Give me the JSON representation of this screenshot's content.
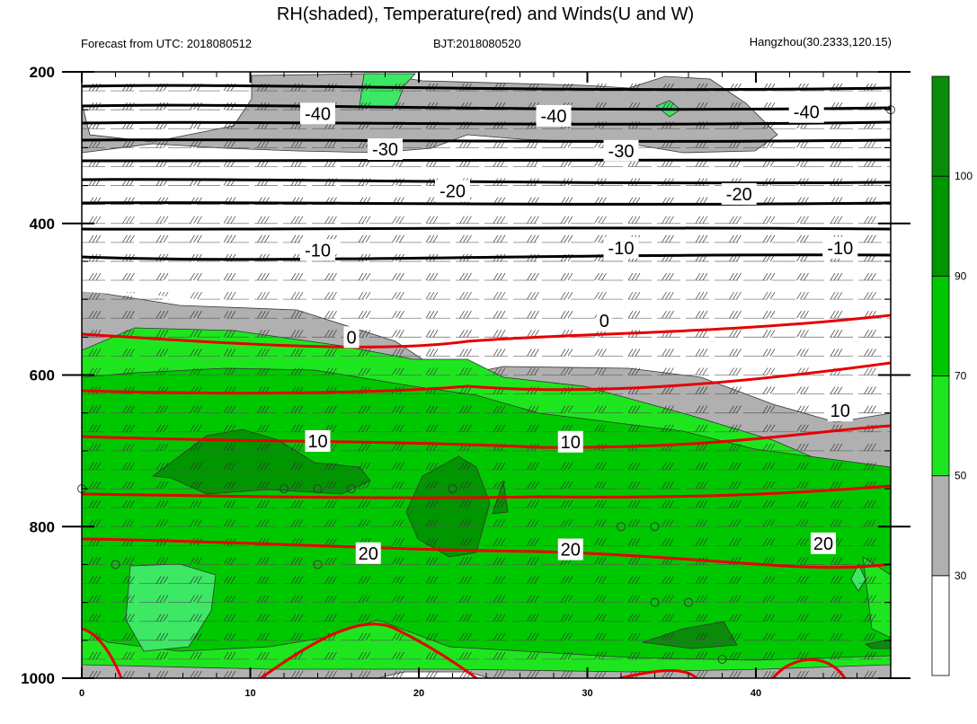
{
  "header": {
    "title": "RH(shaded), Temperature(red) and Winds(U and W)",
    "left_sub": "Forecast from UTC: 2018080512",
    "center_sub": "BJT:2018080520",
    "right_sub": "Hangzhou(30.2333,120.15)"
  },
  "chart_data": {
    "type": "heatmap",
    "title": "RH(shaded), Temperature(red) and Winds(U and W)",
    "x": {
      "range": [
        0,
        48
      ],
      "ticks": [
        0,
        10,
        20,
        30,
        40
      ],
      "tick_labels": [
        "0",
        "10",
        "20",
        "30",
        "40"
      ]
    },
    "y": {
      "range": [
        200,
        1000
      ],
      "inverted": true,
      "ticks": [
        200,
        400,
        600,
        800,
        1000
      ],
      "tick_labels": [
        "200",
        "400",
        "600",
        "800",
        "1000"
      ]
    },
    "colorbar": {
      "levels": [
        30,
        50,
        70,
        90,
        100
      ],
      "tick_labels": [
        "30",
        "50",
        "70",
        "90",
        "100"
      ],
      "colors": [
        "#ffffff",
        "#b0b0b0",
        "#1ee61e",
        "#00c800",
        "#009600",
        "#0a8c0a"
      ]
    },
    "temperature_contours": [
      {
        "label": "-40",
        "color": "#000000",
        "levels_p_at_x": [
          [
            0,
            255
          ],
          [
            48,
            255
          ]
        ]
      },
      {
        "label": "-30",
        "color": "#000000",
        "levels_p_at_x": [
          [
            0,
            300
          ],
          [
            48,
            300
          ]
        ]
      },
      {
        "label": "-20",
        "color": "#000000",
        "levels_p_at_x": [
          [
            0,
            360
          ],
          [
            48,
            360
          ]
        ]
      },
      {
        "label": "-10",
        "color": "#000000",
        "levels_p_at_x": [
          [
            0,
            432
          ],
          [
            48,
            432
          ]
        ]
      },
      {
        "label": "0",
        "color": "#ffffff",
        "levels_p_at_x": [
          [
            0,
            523
          ],
          [
            10,
            547
          ],
          [
            48,
            540
          ]
        ]
      },
      {
        "label": "10",
        "color": "#e60000",
        "levels_p_at_x": [
          [
            0,
            687
          ],
          [
            20,
            690
          ],
          [
            48,
            630
          ]
        ]
      },
      {
        "label": "20",
        "color": "#e60000",
        "levels_p_at_x": [
          [
            0,
            825
          ],
          [
            24,
            832
          ],
          [
            48,
            815
          ]
        ]
      }
    ],
    "contour_labels": [
      {
        "text": "-40",
        "x": 14,
        "p": 255
      },
      {
        "text": "-40",
        "x": 28,
        "p": 258
      },
      {
        "text": "-40",
        "x": 43,
        "p": 253
      },
      {
        "text": "-30",
        "x": 18,
        "p": 302
      },
      {
        "text": "-30",
        "x": 32,
        "p": 304
      },
      {
        "text": "-20",
        "x": 22,
        "p": 357
      },
      {
        "text": "-20",
        "x": 39,
        "p": 361
      },
      {
        "text": "-10",
        "x": 14,
        "p": 435
      },
      {
        "text": "-10",
        "x": 32,
        "p": 432
      },
      {
        "text": "-10",
        "x": 45,
        "p": 432
      },
      {
        "text": "0",
        "x": 31,
        "p": 528
      },
      {
        "text": "0",
        "x": 16,
        "p": 550
      },
      {
        "text": "10",
        "x": 14,
        "p": 687
      },
      {
        "text": "10",
        "x": 29,
        "p": 688
      },
      {
        "text": "10",
        "x": 45,
        "p": 647
      },
      {
        "text": "20",
        "x": 17,
        "p": 835
      },
      {
        "text": "20",
        "x": 29,
        "p": 830
      },
      {
        "text": "20",
        "x": 44,
        "p": 822
      }
    ],
    "wind_levels_p": [
      225,
      250,
      275,
      300,
      325,
      350,
      375,
      400,
      425,
      450,
      475,
      500,
      525,
      550,
      575,
      600,
      625,
      650,
      675,
      700,
      725,
      750,
      775,
      800,
      825,
      850,
      875,
      900,
      925,
      950,
      975,
      1000
    ],
    "calm_markers": [
      {
        "x": 0,
        "p": 750
      },
      {
        "x": 12,
        "p": 750
      },
      {
        "x": 14,
        "p": 750
      },
      {
        "x": 16,
        "p": 750
      },
      {
        "x": 22,
        "p": 750
      },
      {
        "x": 32,
        "p": 800
      },
      {
        "x": 34,
        "p": 800
      },
      {
        "x": 2,
        "p": 850
      },
      {
        "x": 14,
        "p": 850
      },
      {
        "x": 34,
        "p": 900
      },
      {
        "x": 36,
        "p": 900
      },
      {
        "x": 38,
        "p": 975
      },
      {
        "x": 48,
        "p": 250
      }
    ]
  }
}
